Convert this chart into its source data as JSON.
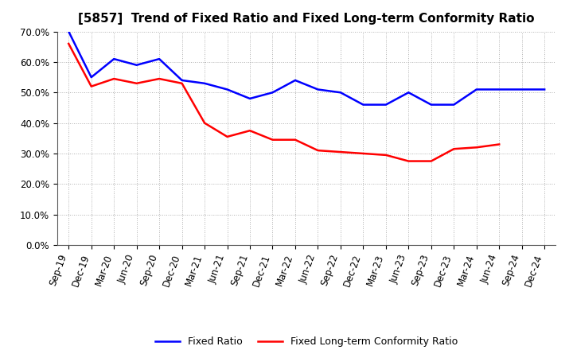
{
  "title": "[5857]  Trend of Fixed Ratio and Fixed Long-term Conformity Ratio",
  "x_labels": [
    "Sep-19",
    "Dec-19",
    "Mar-20",
    "Jun-20",
    "Sep-20",
    "Dec-20",
    "Mar-21",
    "Jun-21",
    "Sep-21",
    "Dec-21",
    "Mar-22",
    "Jun-22",
    "Sep-22",
    "Dec-22",
    "Mar-23",
    "Jun-23",
    "Sep-23",
    "Dec-23",
    "Mar-24",
    "Jun-24",
    "Sep-24",
    "Dec-24"
  ],
  "fixed_ratio": [
    0.7,
    0.55,
    0.61,
    0.59,
    0.61,
    0.54,
    0.53,
    0.51,
    0.48,
    0.5,
    0.54,
    0.51,
    0.5,
    0.46,
    0.46,
    0.5,
    0.46,
    0.46,
    0.51,
    0.51,
    0.51,
    0.51
  ],
  "fixed_lt_ratio": [
    0.66,
    0.52,
    0.545,
    0.53,
    0.545,
    0.53,
    0.4,
    0.355,
    0.375,
    0.345,
    0.345,
    0.31,
    0.305,
    0.3,
    0.295,
    0.275,
    0.275,
    0.315,
    0.32,
    0.33,
    null,
    null
  ],
  "fixed_ratio_color": "#0000ff",
  "fixed_lt_ratio_color": "#ff0000",
  "ylim": [
    0.0,
    0.7
  ],
  "yticks": [
    0.0,
    0.1,
    0.2,
    0.3,
    0.4,
    0.5,
    0.6,
    0.7
  ],
  "legend_fixed": "Fixed Ratio",
  "legend_lt": "Fixed Long-term Conformity Ratio",
  "background_color": "#ffffff",
  "grid_color": "#aaaaaa",
  "title_fontsize": 11,
  "tick_fontsize": 8.5,
  "legend_fontsize": 9,
  "linewidth": 1.8
}
